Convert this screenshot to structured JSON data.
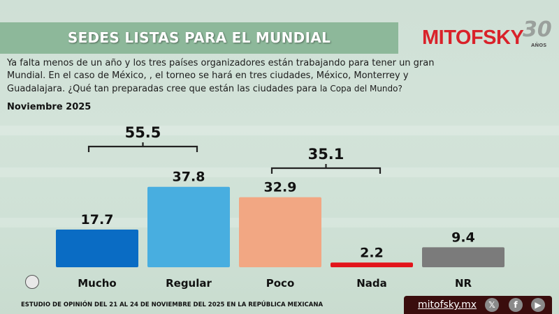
{
  "header": {
    "title": "SEDES LISTAS PARA EL MUNDIAL",
    "brand": "MITOFSKY",
    "anniversary": "30",
    "anniversary_sub": "AÑOS"
  },
  "question": {
    "text": "Ya falta menos de un año y los tres países organizadores están trabajando para tener un gran Mundial. En el caso de México, , el torneo se hará en tres ciudades, México, Monterrey y Guadalajara. ¿Qué tan preparadas cree que están las ciudades para ",
    "emphasis": "la Copa del Mundo?"
  },
  "period": "Noviembre 2025",
  "chart_data": {
    "type": "bar",
    "title": "SEDES LISTAS PARA EL MUNDIAL",
    "categories": [
      "Mucho",
      "Regular",
      "Poco",
      "Nada",
      "NR"
    ],
    "values": [
      17.7,
      37.8,
      32.9,
      2.2,
      9.4
    ],
    "value_labels": [
      "17.7",
      "37.8",
      "32.9",
      "2.2",
      "9.4"
    ],
    "colors": [
      "#0a6cc4",
      "#48aee0",
      "#f2a783",
      "#e3141b",
      "#7b7b7b"
    ],
    "groups": [
      {
        "label": "55.5",
        "from": 0,
        "to": 1
      },
      {
        "label": "35.1",
        "from": 2,
        "to": 3
      }
    ],
    "unit": "%",
    "ylim": [
      0,
      40
    ],
    "xlabel": "",
    "ylabel": "",
    "grid": false,
    "legend": "none"
  },
  "footer": {
    "study_note": "ESTUDIO DE OPINIÓN DEL 21 AL 24 DE NOVIEMBRE DEL 2025 EN LA REPÚBLICA MEXICANA",
    "website": "mitofsky.mx",
    "social": [
      {
        "name": "x",
        "glyph": "𝕏"
      },
      {
        "name": "facebook",
        "glyph": "f"
      },
      {
        "name": "youtube",
        "glyph": "▶"
      }
    ]
  }
}
